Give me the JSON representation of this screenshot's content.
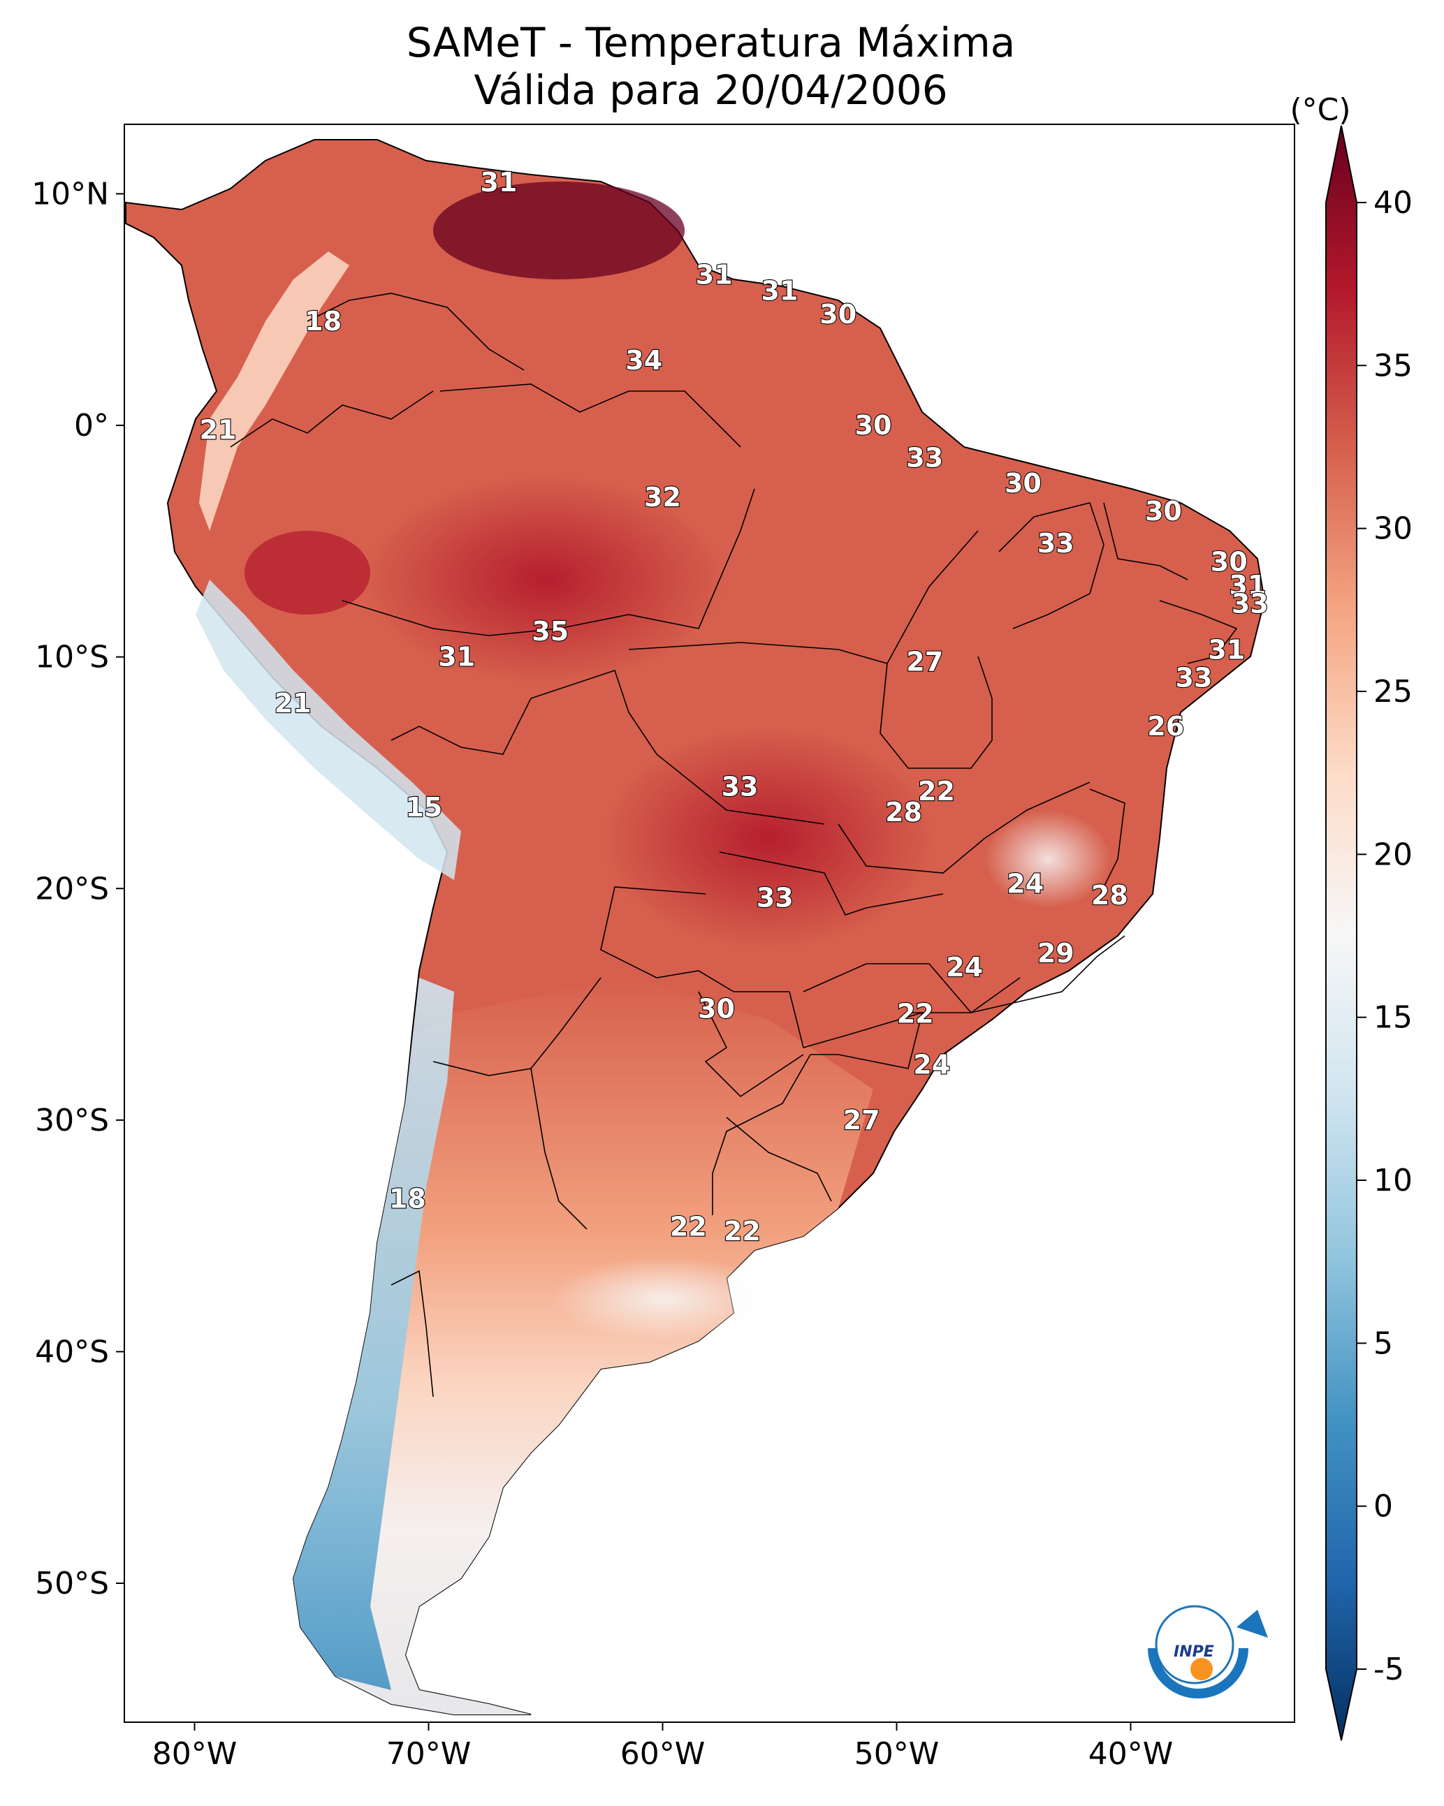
{
  "title": {
    "line1": "SAMeT - Temperatura Máxima",
    "line2": "Válida para 20/04/2006"
  },
  "map": {
    "lon_range": [
      -83,
      -33
    ],
    "lat_range": [
      -56,
      13
    ],
    "lat_ticks": [
      "10°N",
      "0°",
      "10°S",
      "20°S",
      "30°S",
      "40°S",
      "50°S"
    ],
    "lat_tick_values": [
      10,
      0,
      -10,
      -20,
      -30,
      -40,
      -50
    ],
    "lon_ticks": [
      "80°W",
      "70°W",
      "60°W",
      "50°W",
      "40°W"
    ],
    "lon_tick_values": [
      -80,
      -70,
      -60,
      -50,
      -40
    ]
  },
  "colorbar": {
    "unit": "(°C)",
    "ticks": [
      "40",
      "35",
      "30",
      "25",
      "20",
      "15",
      "10",
      "5",
      "0",
      "-5"
    ],
    "tick_values": [
      40,
      35,
      30,
      25,
      20,
      15,
      10,
      5,
      0,
      -5
    ],
    "range": [
      -5,
      40
    ],
    "colormap": [
      "#053061",
      "#2166ac",
      "#4393c3",
      "#92c5de",
      "#d1e5f0",
      "#f7f7f7",
      "#fddbc7",
      "#f4a582",
      "#d6604d",
      "#b2182b",
      "#67001f"
    ]
  },
  "labels": [
    {
      "v": "31",
      "lon": -67,
      "lat": 10.5
    },
    {
      "v": "31",
      "lon": -57.8,
      "lat": 6.5
    },
    {
      "v": "31",
      "lon": -55,
      "lat": 5.8
    },
    {
      "v": "30",
      "lon": -52.5,
      "lat": 4.8
    },
    {
      "v": "18",
      "lon": -74.5,
      "lat": 4.5
    },
    {
      "v": "34",
      "lon": -60.8,
      "lat": 2.8
    },
    {
      "v": "30",
      "lon": -51,
      "lat": 0
    },
    {
      "v": "21",
      "lon": -79,
      "lat": -0.2
    },
    {
      "v": "33",
      "lon": -48.8,
      "lat": -1.4
    },
    {
      "v": "30",
      "lon": -44.6,
      "lat": -2.5
    },
    {
      "v": "32",
      "lon": -60,
      "lat": -3.1
    },
    {
      "v": "30",
      "lon": -38.6,
      "lat": -3.7
    },
    {
      "v": "33",
      "lon": -43.2,
      "lat": -5.1
    },
    {
      "v": "30",
      "lon": -35.8,
      "lat": -5.9
    },
    {
      "v": "31",
      "lon": -35,
      "lat": -6.9
    },
    {
      "v": "33",
      "lon": -34.9,
      "lat": -7.7
    },
    {
      "v": "35",
      "lon": -64.8,
      "lat": -8.9
    },
    {
      "v": "31",
      "lon": -35.9,
      "lat": -9.7
    },
    {
      "v": "31",
      "lon": -68.8,
      "lat": -10
    },
    {
      "v": "27",
      "lon": -48.8,
      "lat": -10.2
    },
    {
      "v": "33",
      "lon": -37.3,
      "lat": -10.9
    },
    {
      "v": "21",
      "lon": -75.8,
      "lat": -12
    },
    {
      "v": "26",
      "lon": -38.5,
      "lat": -13
    },
    {
      "v": "33",
      "lon": -56.7,
      "lat": -15.6
    },
    {
      "v": "22",
      "lon": -48.3,
      "lat": -15.8
    },
    {
      "v": "28",
      "lon": -49.7,
      "lat": -16.7
    },
    {
      "v": "15",
      "lon": -70.2,
      "lat": -16.5
    },
    {
      "v": "24",
      "lon": -44.5,
      "lat": -19.8
    },
    {
      "v": "28",
      "lon": -40.9,
      "lat": -20.3
    },
    {
      "v": "33",
      "lon": -55.2,
      "lat": -20.4
    },
    {
      "v": "29",
      "lon": -43.2,
      "lat": -22.8
    },
    {
      "v": "24",
      "lon": -47.1,
      "lat": -23.4
    },
    {
      "v": "30",
      "lon": -57.7,
      "lat": -25.2
    },
    {
      "v": "22",
      "lon": -49.2,
      "lat": -25.4
    },
    {
      "v": "24",
      "lon": -48.5,
      "lat": -27.6
    },
    {
      "v": "27",
      "lon": -51.5,
      "lat": -30
    },
    {
      "v": "18",
      "lon": -70.9,
      "lat": -33.4
    },
    {
      "v": "22",
      "lon": -58.9,
      "lat": -34.6
    },
    {
      "v": "22",
      "lon": -56.6,
      "lat": -34.8
    }
  ]
}
